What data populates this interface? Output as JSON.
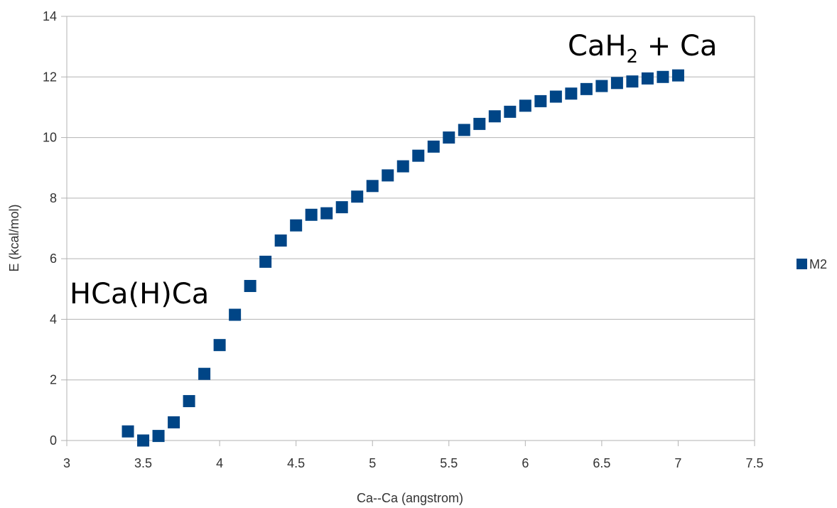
{
  "chart_data": {
    "type": "scatter",
    "title": "",
    "xlabel": "Ca--Ca (angstrom)",
    "ylabel": "E (kcal/mol)",
    "xlim": [
      3,
      7.5
    ],
    "ylim": [
      0,
      14
    ],
    "xticks": [
      3,
      3.5,
      4,
      4.5,
      5,
      5.5,
      6,
      6.5,
      7,
      7.5
    ],
    "xtick_labels": [
      "3",
      "3.5",
      "4",
      "4.5",
      "5",
      "5.5",
      "6",
      "6.5",
      "7",
      "7.5"
    ],
    "yticks": [
      0,
      2,
      4,
      6,
      8,
      10,
      12,
      14
    ],
    "ytick_labels": [
      "0",
      "2",
      "4",
      "6",
      "8",
      "10",
      "12",
      "14"
    ],
    "grid": "horizontal",
    "legend_position": "right",
    "series": [
      {
        "name": "M2",
        "color": "#004586",
        "marker": "square",
        "x": [
          3.4,
          3.5,
          3.6,
          3.7,
          3.8,
          3.9,
          4.0,
          4.1,
          4.2,
          4.3,
          4.4,
          4.5,
          4.6,
          4.7,
          4.8,
          4.9,
          5.0,
          5.1,
          5.2,
          5.3,
          5.4,
          5.5,
          5.6,
          5.7,
          5.8,
          5.9,
          6.0,
          6.1,
          6.2,
          6.3,
          6.4,
          6.5,
          6.6,
          6.7,
          6.8,
          6.9,
          7.0
        ],
        "y": [
          0.3,
          0.0,
          0.15,
          0.6,
          1.3,
          2.2,
          3.15,
          4.15,
          5.1,
          5.9,
          6.6,
          7.1,
          7.45,
          7.5,
          7.7,
          8.05,
          8.4,
          8.75,
          9.05,
          9.4,
          9.7,
          10.0,
          10.25,
          10.45,
          10.7,
          10.85,
          11.05,
          11.2,
          11.35,
          11.45,
          11.6,
          11.7,
          11.8,
          11.85,
          11.95,
          12.0,
          12.05
        ]
      }
    ],
    "annotations": [
      {
        "text": "HCa(H)Ca",
        "near": "left, above low minimum"
      },
      {
        "text_main": "CaH",
        "text_sub": "2",
        "text_rest": " + Ca",
        "near": "top-right"
      }
    ]
  }
}
